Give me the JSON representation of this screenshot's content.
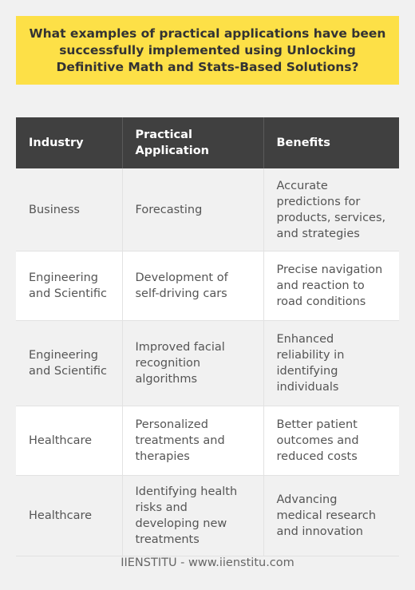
{
  "title": "What examples of practical applications have been successfully implemented using Unlocking Definitive Math and Stats-Based Solutions?",
  "table": {
    "headers": [
      "Industry",
      "Practical Application",
      "Benefits"
    ],
    "rows": [
      [
        "Business",
        "Forecasting",
        "Accurate predictions for products, services, and strategies"
      ],
      [
        "Engineering and Scientific",
        "Development of self-driving cars",
        "Precise navigation and reaction to road conditions"
      ],
      [
        "Engineering and Scientific",
        "Improved facial recognition algorithms",
        "Enhanced reliability in identifying individuals"
      ],
      [
        "Healthcare",
        "Personalized treatments and therapies",
        "Better patient outcomes and reduced costs"
      ],
      [
        "Healthcare",
        "Identifying health risks and developing new treatments",
        "Advancing medical research and innovation"
      ]
    ]
  },
  "footer": "IIENSTITU - www.iienstitu.com",
  "colors": {
    "title_bg": "#fde047",
    "header_bg": "#404040",
    "row_alt_bg": "#ffffff",
    "page_bg": "#f1f1f1"
  }
}
